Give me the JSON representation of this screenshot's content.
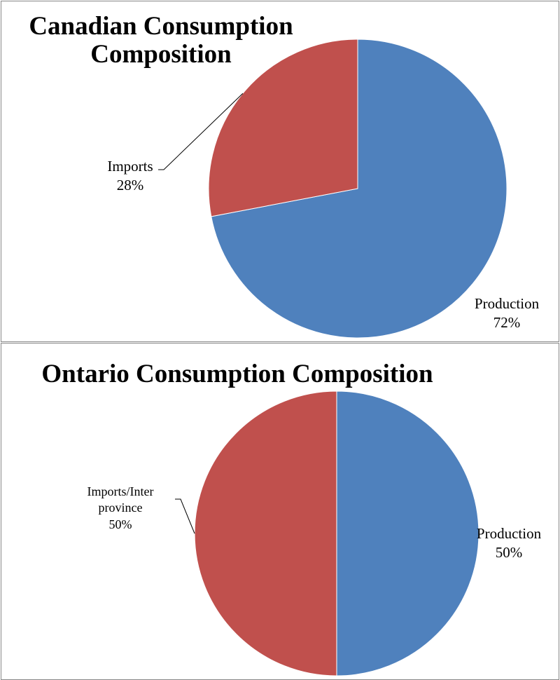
{
  "chart_data": [
    {
      "type": "pie",
      "title": "Canadian Consumption Composition",
      "categories": [
        "Production",
        "Imports"
      ],
      "values": [
        72,
        28
      ],
      "value_labels": [
        "72%",
        "28%"
      ],
      "colors": [
        "#4f81bd",
        "#c0504d"
      ]
    },
    {
      "type": "pie",
      "title": "Ontario Consumption Composition",
      "categories": [
        "Production",
        "Imports/Inter province"
      ],
      "values": [
        50,
        50
      ],
      "value_labels": [
        "50%",
        "50%"
      ],
      "colors": [
        "#4f81bd",
        "#c0504d"
      ]
    }
  ]
}
